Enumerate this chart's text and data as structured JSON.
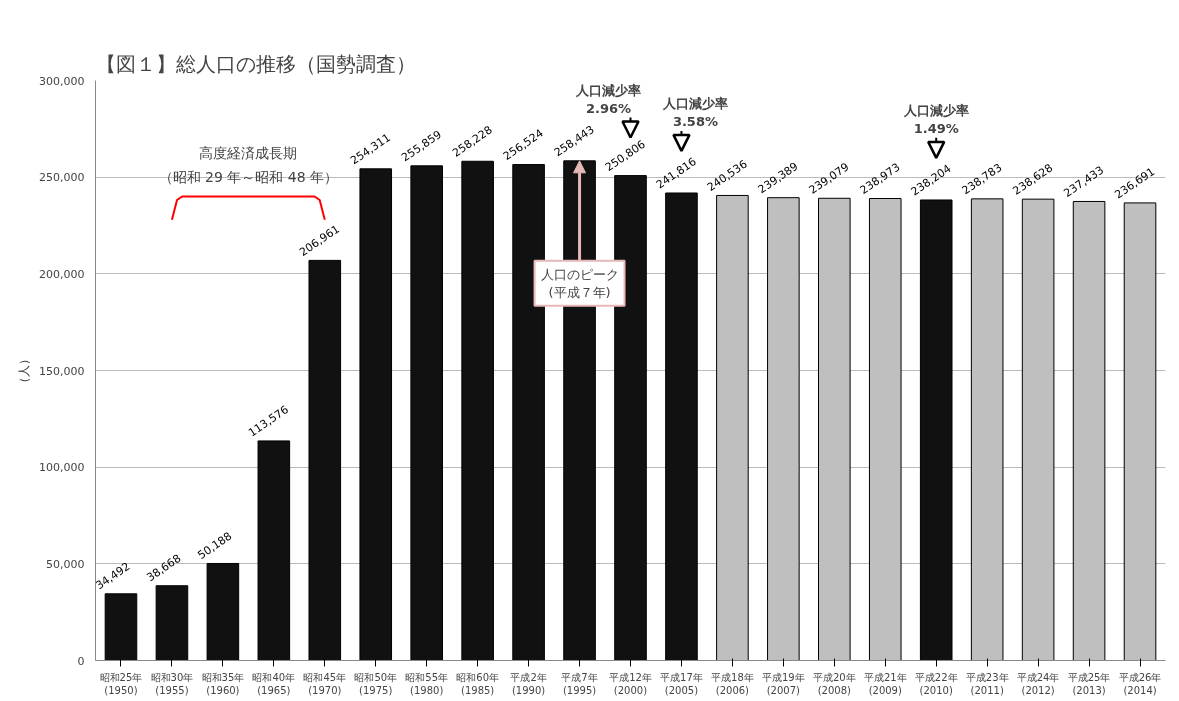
{
  "chart_data": {
    "type": "bar",
    "title": "【図１】総人口の推移（国勢調査）",
    "ylabel": "（人）",
    "categories": [
      "昭和25年\n(1950)",
      "昭和30年\n(1955)",
      "昭和35年\n(1960)",
      "昭和40年\n(1965)",
      "昭和45年\n(1970)",
      "昭和50年\n(1975)",
      "昭和55年\n(1980)",
      "昭和60年\n(1985)",
      "平成2年\n(1990)",
      "平成7年\n(1995)",
      "平成12年\n(2000)",
      "平成17年\n(2005)",
      "平成18年\n(2006)",
      "平成19年\n(2007)",
      "平成20年\n(2008)",
      "平成21年\n(2009)",
      "平成22年\n(2010)",
      "平成23年\n(2011)",
      "平成24年\n(2012)",
      "平成25年\n(2013)",
      "平成26年\n(2014)"
    ],
    "values": [
      34492,
      38668,
      50188,
      113576,
      206961,
      254311,
      255859,
      258228,
      256524,
      258443,
      250806,
      241816,
      240536,
      239389,
      239079,
      238973,
      238204,
      238783,
      238628,
      237433,
      236691
    ],
    "colors": [
      "#111111",
      "#111111",
      "#111111",
      "#111111",
      "#111111",
      "#111111",
      "#111111",
      "#111111",
      "#111111",
      "#111111",
      "#111111",
      "#111111",
      "#bfbfbf",
      "#bfbfbf",
      "#bfbfbf",
      "#bfbfbf",
      "#111111",
      "#bfbfbf",
      "#bfbfbf",
      "#bfbfbf",
      "#bfbfbf"
    ],
    "ylim": [
      0,
      300000
    ],
    "yticks": [
      0,
      {
        "value": 50000,
        "label": "50,000"
      },
      {
        "value": 100000,
        "label": "100,000"
      },
      {
        "value": 150000,
        "label": "150,000"
      },
      {
        "value": 200000,
        "label": "200,000"
      },
      {
        "value": 250000,
        "label": "250,000"
      },
      {
        "value": 300000,
        "label": "300,000"
      }
    ],
    "grid": "y",
    "value_labels": [
      "34,492",
      "38,668",
      "50,188",
      "113,576",
      "206,961",
      "254,311",
      "255,859",
      "258,228",
      "256,524",
      "258,443",
      "250,806",
      "241,816",
      "240,536",
      "239,389",
      "239,079",
      "238,973",
      "238,204",
      "238,783",
      "238,628",
      "237,433",
      "236,691"
    ],
    "annotations": [
      "人口減少率\n2.96%",
      "人口減少率\n3.58%",
      "人口減少率\n1.49%",
      {
        "text": "人口のピーク\n(平成７年)",
        "x": "平成7年\n(1995)",
        "y": 258443
      },
      "高度経済成長期",
      "（昭和 29 年～昭和 48 年）"
    ]
  }
}
